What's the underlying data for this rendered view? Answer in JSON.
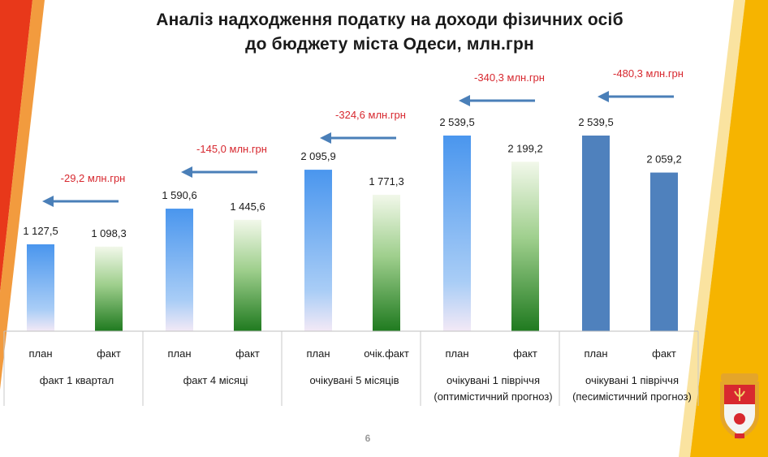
{
  "title": {
    "line1": "Аналіз надходження податку на доходи фізичних осіб",
    "line2": "до бюджету міста Одеси, млн.грн"
  },
  "page_number": "6",
  "colors": {
    "left_stripe": "#e8381a",
    "right_stripe": "#f6b400",
    "arrow": "#4a7fb8",
    "diff_text": "#d7282f",
    "plan_light": "#5ba0ee",
    "fact_green": "#2a8a2a",
    "pessimistic": "#4f81bd"
  },
  "chart_data": {
    "type": "bar",
    "title": "Аналіз надходження податку на доходи фізичних осіб до бюджету міста Одеси, млн.грн",
    "ylim": [
      0,
      2700
    ],
    "series_labels": [
      "план",
      "факт",
      "план",
      "факт",
      "план",
      "очік.факт",
      "план",
      "факт",
      "план",
      "факт"
    ],
    "groups": [
      {
        "label": "факт 1 квартал",
        "bar_labels": [
          "план",
          "факт"
        ],
        "values": [
          1127.5,
          1098.3
        ],
        "value_labels": [
          "1 127,5",
          "1 098,3"
        ],
        "difference": "-29,2 млн.грн"
      },
      {
        "label": "факт 4 місяці",
        "bar_labels": [
          "план",
          "факт"
        ],
        "values": [
          1590.6,
          1445.6
        ],
        "value_labels": [
          "1 590,6",
          "1 445,6"
        ],
        "difference": "-145,0 млн.грн"
      },
      {
        "label": "очікувані 5 місяців",
        "bar_labels": [
          "план",
          "очік.факт"
        ],
        "values": [
          2095.9,
          1771.3
        ],
        "value_labels": [
          "2 095,9",
          "1 771,3"
        ],
        "difference": "-324,6 млн.грн"
      },
      {
        "label": "очікувані 1 півріччя (оптимістичний прогноз)",
        "label_lines": [
          "очікувані 1 півріччя",
          "(оптимістичний прогноз)"
        ],
        "bar_labels": [
          "план",
          "факт"
        ],
        "values": [
          2539.5,
          2199.2
        ],
        "value_labels": [
          "2 539,5",
          "2 199,2"
        ],
        "difference": "-340,3 млн.грн"
      },
      {
        "label": "очікувані 1 півріччя (песимістичний прогноз)",
        "label_lines": [
          "очікувані 1 півріччя",
          "(песимістичний прогноз)"
        ],
        "bar_labels": [
          "план",
          "факт"
        ],
        "values": [
          2539.5,
          2059.2
        ],
        "value_labels": [
          "2 539,5",
          "2 059,2"
        ],
        "difference": "-480,3 млн.грн"
      }
    ],
    "xlabel": "",
    "ylabel": "",
    "grid": false,
    "legend": "none"
  }
}
